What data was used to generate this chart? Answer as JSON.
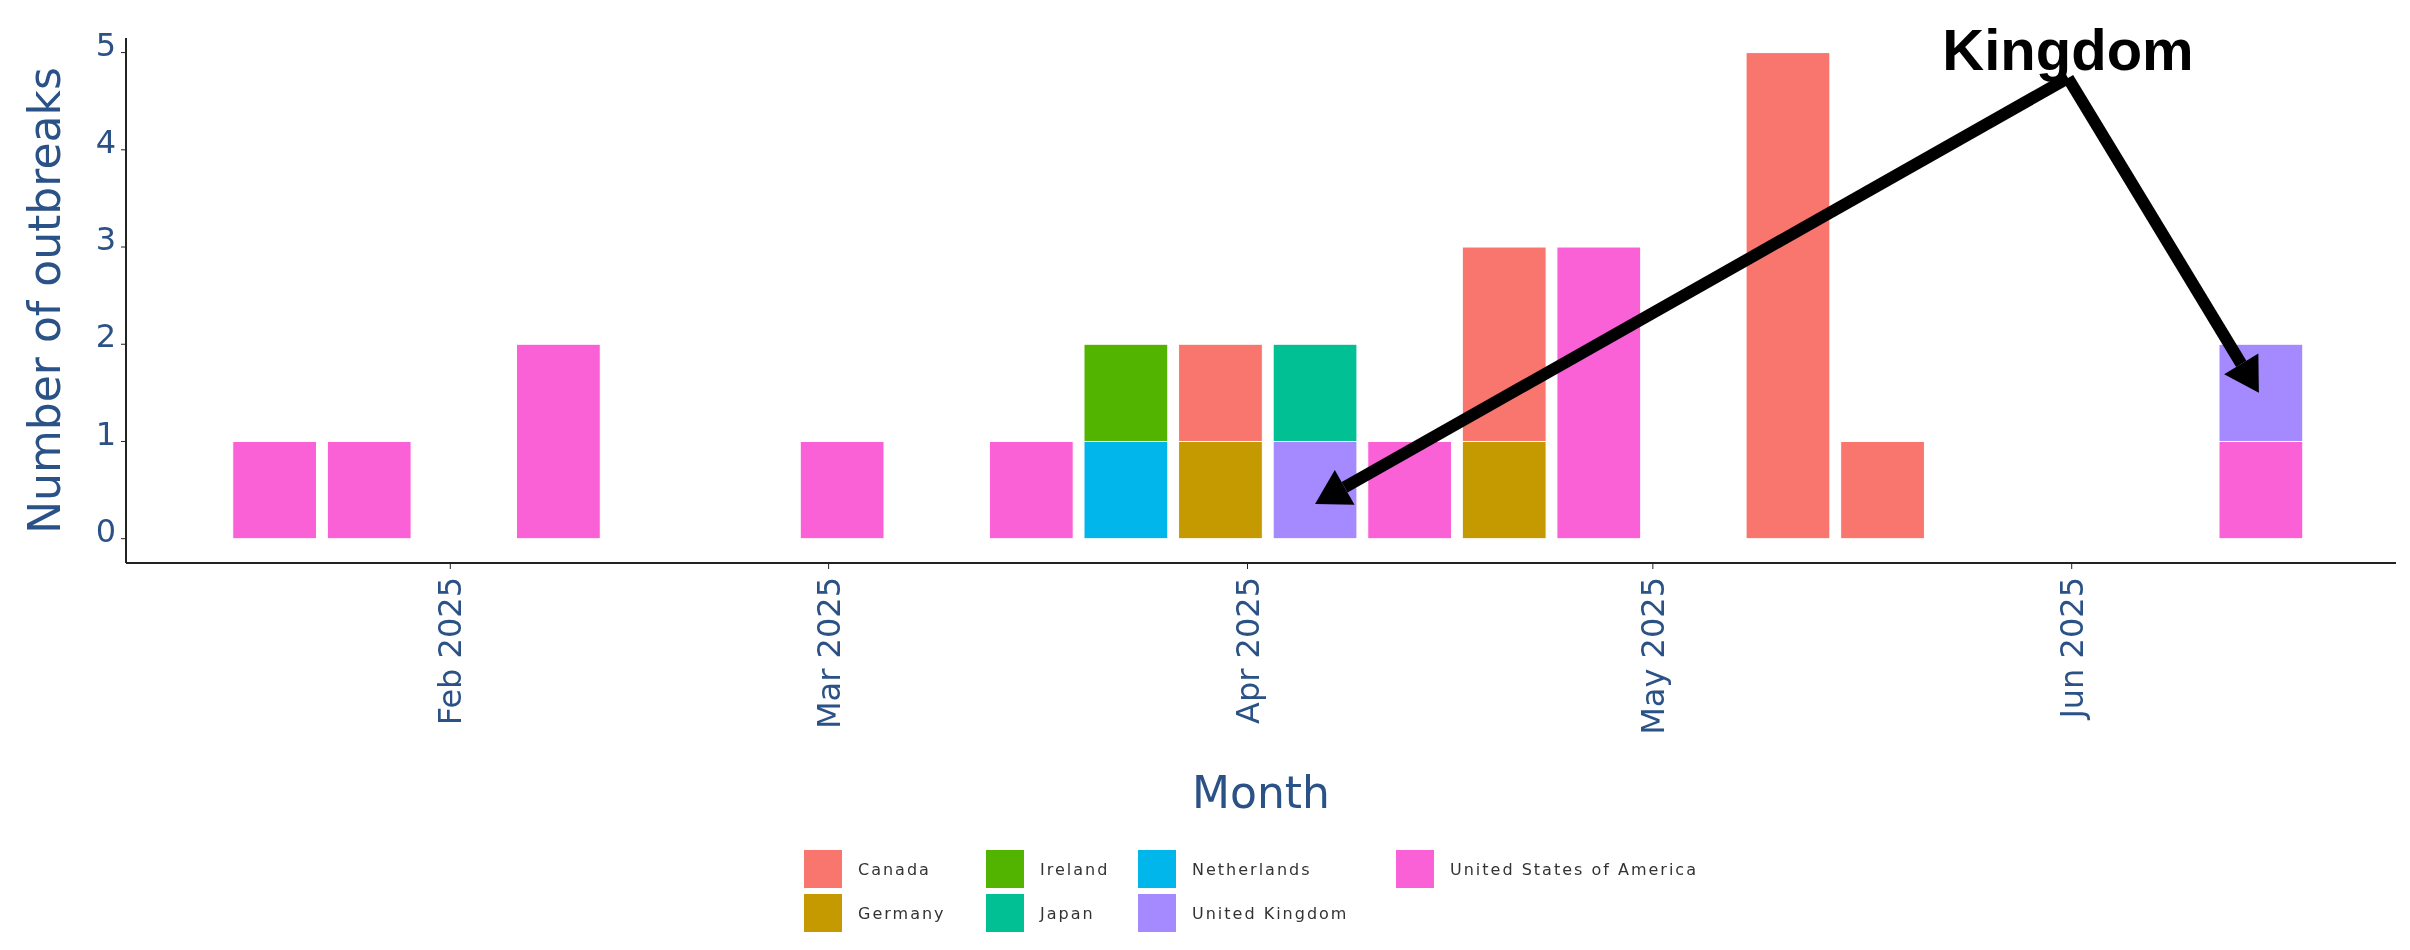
{
  "chart_data": {
    "type": "bar",
    "stacked": true,
    "xlabel": "Month",
    "ylabel": "Number of outbreaks",
    "x": [
      "2025-01-19",
      "2025-01-26",
      "2025-02-09",
      "2025-03-02",
      "2025-03-16",
      "2025-03-23",
      "2025-03-30",
      "2025-04-06",
      "2025-04-13",
      "2025-04-20",
      "2025-04-27",
      "2025-05-11",
      "2025-05-18",
      "2025-06-15"
    ],
    "series": [
      {
        "name": "United States of America",
        "color": "#fb61d7",
        "values": [
          1,
          1,
          2,
          1,
          1,
          null,
          null,
          null,
          1,
          null,
          3,
          null,
          null,
          1
        ]
      },
      {
        "name": "United Kingdom",
        "color": "#a58aff",
        "values": [
          null,
          null,
          null,
          null,
          null,
          null,
          null,
          1,
          null,
          null,
          null,
          null,
          null,
          1
        ]
      },
      {
        "name": "Netherlands",
        "color": "#00b6eb",
        "values": [
          null,
          null,
          null,
          null,
          null,
          1,
          null,
          null,
          null,
          null,
          null,
          null,
          null,
          null
        ]
      },
      {
        "name": "Japan",
        "color": "#00c094",
        "values": [
          null,
          null,
          null,
          null,
          null,
          null,
          null,
          1,
          null,
          null,
          null,
          null,
          null,
          null
        ]
      },
      {
        "name": "Ireland",
        "color": "#53b400",
        "values": [
          null,
          null,
          null,
          null,
          null,
          1,
          null,
          null,
          null,
          null,
          null,
          null,
          null,
          null
        ]
      },
      {
        "name": "Germany",
        "color": "#c49a00",
        "values": [
          null,
          null,
          null,
          null,
          null,
          null,
          1,
          null,
          null,
          1,
          null,
          null,
          null,
          null
        ]
      },
      {
        "name": "Canada",
        "color": "#f8766d",
        "values": [
          null,
          null,
          null,
          null,
          null,
          null,
          1,
          null,
          null,
          2,
          null,
          5,
          1,
          null
        ]
      }
    ],
    "xlim": [
      "2025-01-08",
      "2025-06-25"
    ],
    "xticks": [
      {
        "value": "2025-02-01",
        "label": "Feb 2025"
      },
      {
        "value": "2025-03-01",
        "label": "Mar 2025"
      },
      {
        "value": "2025-04-01",
        "label": "Apr 2025"
      },
      {
        "value": "2025-05-01",
        "label": "May 2025"
      },
      {
        "value": "2025-06-01",
        "label": "Jun 2025"
      }
    ],
    "ylim": [
      -0.25,
      5.15
    ],
    "yticks": [
      0,
      1,
      2,
      3,
      4,
      5
    ],
    "grid": false,
    "legend": "bottom",
    "annotations": [
      "Kingdom"
    ]
  }
}
